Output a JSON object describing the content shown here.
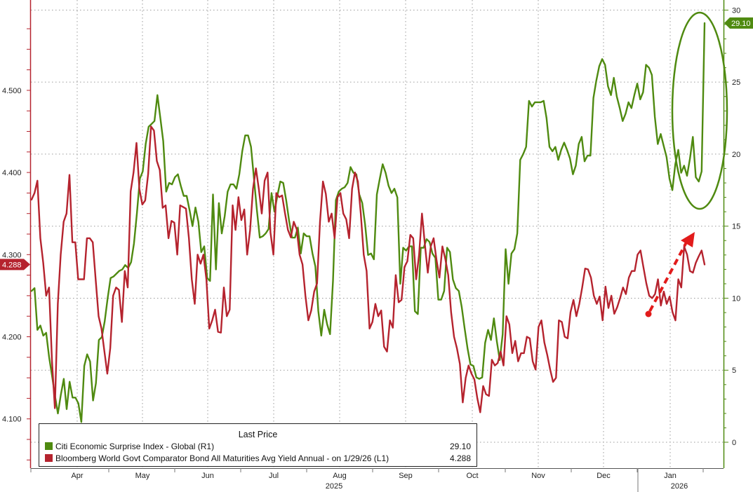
{
  "chart_data": {
    "type": "line",
    "x_labels": [
      "Apr",
      "May",
      "Jun",
      "Jul",
      "Aug",
      "Sep",
      "Oct",
      "Nov",
      "Dec",
      "Jan"
    ],
    "year_labels": [
      "2025",
      "2026"
    ],
    "left_axis": {
      "ticks": [
        "4.100",
        "4.200",
        "4.300",
        "4.400",
        "4.500"
      ],
      "range": [
        4.04,
        4.61
      ]
    },
    "right_axis": {
      "ticks": [
        "0",
        "5",
        "10",
        "15",
        "20",
        "25",
        "30"
      ],
      "range": [
        -1.8,
        30.7
      ]
    },
    "legend_title": "Last Price",
    "series": [
      {
        "name": "Citi Economic Surprise Index - Global  (R1)",
        "axis": "right",
        "color": "#4f8a10",
        "last_value": "29.10",
        "values": [
          10.5,
          10.7,
          7.8,
          8.1,
          7.4,
          7.6,
          5.9,
          4.6,
          3.2,
          2,
          3.3,
          4.4,
          2.3,
          4.2,
          3.1,
          3.1,
          2.7,
          1.4,
          5.3,
          6.1,
          5.6,
          2.9,
          4.1,
          7.1,
          7.3,
          8.4,
          10,
          11.4,
          11.5,
          11.7,
          11.9,
          12,
          12.3,
          12.1,
          12.5,
          13.8,
          15.9,
          18.3,
          18.8,
          20.7,
          21.9,
          22.1,
          22.3,
          24.1,
          22.5,
          20.9,
          17.4,
          18,
          17.9,
          18.4,
          18.6,
          17.8,
          17.1,
          17.1,
          16.1,
          15,
          16.3,
          15.3,
          13.2,
          13.6,
          11.4,
          11.2,
          17.2,
          12,
          16.6,
          14.5,
          15.7,
          17.4,
          17.9,
          17.9,
          17.6,
          18.6,
          20.2,
          21.3,
          21.3,
          20.5,
          18.3,
          16.1,
          14.2,
          14.3,
          14.5,
          14.8,
          17.3,
          16,
          17.1,
          18.1,
          18,
          16.8,
          15.4,
          14.2,
          14.2,
          14.9,
          13.1,
          14.5,
          14.3,
          14.3,
          13.1,
          12.2,
          9.1,
          7.4,
          9.2,
          8.2,
          7.5,
          11.2,
          16.8,
          17.4,
          17.6,
          17.7,
          18,
          19.1,
          18.7,
          18.6,
          17.2,
          16.6,
          15.1,
          13,
          13.1,
          12.7,
          17.2,
          18.3,
          19.3,
          18.7,
          17.8,
          17.3,
          17.6,
          17,
          11,
          13.5,
          13.3,
          13.6,
          13.6,
          9.1,
          8.9,
          13.5,
          13.5,
          14.1,
          13.9,
          13.1,
          12.8,
          9.9,
          9.9,
          10.5,
          13.5,
          13.2,
          11.3,
          10.7,
          10.5,
          9.4,
          7.9,
          6.5,
          5.4,
          5.3,
          4.5,
          4.4,
          4.5,
          6.9,
          7.8,
          7.1,
          8.6,
          7,
          5.7,
          7.5,
          13.4,
          11,
          13.1,
          13.4,
          14.5,
          19.6,
          20,
          20.5,
          23.7,
          23.3,
          23.6,
          23.6,
          23.6,
          23.7,
          22.5,
          20.5,
          20.2,
          20.5,
          19.6,
          20.3,
          20.8,
          20.3,
          19.7,
          18.6,
          19.2,
          20.7,
          21.2,
          19.5,
          19.9,
          19.9,
          23.9,
          25.1,
          26.1,
          26.6,
          26.2,
          24.7,
          24.1,
          25.3,
          24,
          23.2,
          22.3,
          22.8,
          23.6,
          23.2,
          24.1,
          24.9,
          23.8,
          24.3,
          26.2,
          26,
          25.5,
          22.6,
          20.7,
          21.4,
          20.6,
          19.8,
          18.3,
          17.5,
          19.3,
          20.3,
          18.7,
          19.2,
          18.5,
          19.7,
          21.2,
          18.4,
          18.1,
          18.8,
          29.1
        ]
      },
      {
        "name": "Bloomberg World Govt Comparator Bond All Maturities Avg Yield Annual -   on 1/29/26  (L1)",
        "axis": "left",
        "color": "#b5232e",
        "last_value": "4.288",
        "values": [
          4.367,
          4.375,
          4.39,
          4.32,
          4.29,
          4.25,
          4.26,
          4.17,
          4.113,
          4.24,
          4.3,
          4.34,
          4.35,
          4.397,
          4.315,
          4.315,
          4.27,
          4.27,
          4.27,
          4.32,
          4.32,
          4.315,
          4.27,
          4.225,
          4.21,
          4.182,
          4.155,
          4.186,
          4.25,
          4.26,
          4.257,
          4.218,
          4.28,
          4.26,
          4.377,
          4.4,
          4.436,
          4.38,
          4.361,
          4.366,
          4.398,
          4.456,
          4.451,
          4.414,
          4.403,
          4.357,
          4.36,
          4.32,
          4.341,
          4.339,
          4.3,
          4.36,
          4.358,
          4.356,
          4.32,
          4.27,
          4.24,
          4.3,
          4.289,
          4.3,
          4.27,
          4.21,
          4.22,
          4.233,
          4.206,
          4.205,
          4.26,
          4.225,
          4.233,
          4.36,
          4.33,
          4.37,
          4.342,
          4.355,
          4.3,
          4.33,
          4.38,
          4.405,
          4.38,
          4.35,
          4.39,
          4.4,
          4.327,
          4.3,
          4.375,
          4.37,
          4.372,
          4.35,
          4.33,
          4.321,
          4.34,
          4.331,
          4.3,
          4.288,
          4.25,
          4.22,
          4.232,
          4.255,
          4.265,
          4.34,
          4.389,
          4.374,
          4.34,
          4.35,
          4.32,
          4.37,
          4.375,
          4.35,
          4.343,
          4.32,
          4.38,
          4.4,
          4.389,
          4.35,
          4.3,
          4.28,
          4.21,
          4.218,
          4.24,
          4.225,
          4.232,
          4.188,
          4.182,
          4.22,
          4.211,
          4.275,
          4.242,
          4.245,
          4.285,
          4.292,
          4.324,
          4.32,
          4.27,
          4.3,
          4.35,
          4.312,
          4.278,
          4.31,
          4.32,
          4.293,
          4.272,
          4.31,
          4.295,
          4.275,
          4.23,
          4.2,
          4.186,
          4.167,
          4.12,
          4.15,
          4.165,
          4.155,
          4.148,
          4.125,
          4.108,
          4.14,
          4.13,
          4.128,
          4.172,
          4.165,
          4.168,
          4.182,
          4.165,
          4.225,
          4.215,
          4.18,
          4.195,
          4.17,
          4.18,
          4.18,
          4.2,
          4.198,
          4.17,
          4.16,
          4.212,
          4.22,
          4.193,
          4.178,
          4.16,
          4.145,
          4.15,
          4.22,
          4.218,
          4.2,
          4.198,
          4.23,
          4.245,
          4.225,
          4.24,
          4.26,
          4.283,
          4.282,
          4.272,
          4.25,
          4.24,
          4.249,
          4.22,
          4.261,
          4.235,
          4.25,
          4.228,
          4.236,
          4.247,
          4.26,
          4.252,
          4.272,
          4.28,
          4.28,
          4.3,
          4.305,
          4.285,
          4.265,
          4.25,
          4.247,
          4.252,
          4.27,
          4.238,
          4.255,
          4.24,
          4.249,
          4.23,
          4.22,
          4.27,
          4.26,
          4.31,
          4.3,
          4.28,
          4.278,
          4.29,
          4.298,
          4.305,
          4.288
        ]
      }
    ]
  },
  "tags": {
    "left_last": "4.288",
    "right_last": "29.10"
  },
  "legend": {
    "title": "Last Price",
    "row1_name": "Citi Economic Surprise Index - Global  (R1)",
    "row1_value": "29.10",
    "row2_name": "Bloomberg World Govt Comparator Bond All Maturities Avg Yield Annual -   on 1/29/26  (L1)",
    "row2_value": "4.288"
  },
  "colors": {
    "green": "#4f8a10",
    "red": "#b5232e",
    "grid": "#9a9a9a",
    "annotation": "#e21b1b"
  }
}
